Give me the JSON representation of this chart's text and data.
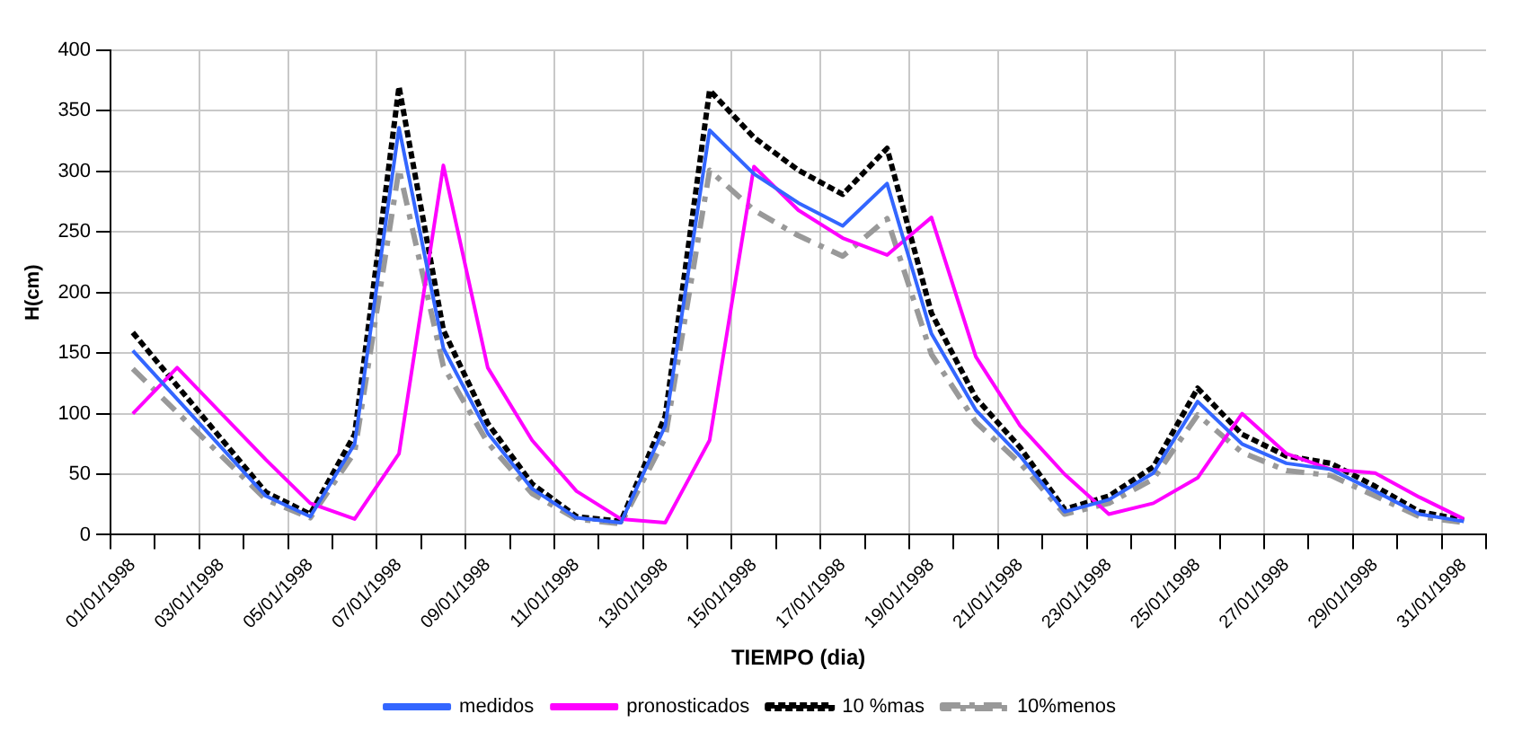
{
  "chart_data": {
    "type": "line",
    "xlabel": "TIEMPO (dia)",
    "ylabel": "H(cm)",
    "categories": [
      "01/01/1998",
      null,
      "03/01/1998",
      null,
      "05/01/1998",
      null,
      "07/01/1998",
      null,
      "09/01/1998",
      null,
      "11/01/1998",
      null,
      "13/01/1998",
      null,
      "15/01/1998",
      null,
      "17/01/1998",
      null,
      "19/01/1998",
      null,
      "21/01/1998",
      null,
      "23/01/1998",
      null,
      "25/01/1998",
      null,
      "27/01/1998",
      null,
      "29/01/1998",
      null,
      "31/01/1998"
    ],
    "series": [
      {
        "name": "medidos",
        "color": "#3366ff",
        "line_style": "solid",
        "values": [
          152,
          112,
          72,
          32,
          15,
          75,
          336,
          154,
          84,
          38,
          14,
          10,
          90,
          334,
          298,
          274,
          255,
          290,
          166,
          103,
          65,
          19,
          29,
          51,
          110,
          75,
          59,
          54,
          36,
          17,
          11
        ]
      },
      {
        "name": "pronosticados",
        "color": "#ff00ff",
        "line_style": "solid",
        "values": [
          100,
          138,
          100,
          62,
          26,
          13,
          67,
          305,
          138,
          78,
          36,
          13,
          10,
          78,
          304,
          268,
          245,
          231,
          262,
          147,
          90,
          50,
          17,
          26,
          47,
          100,
          67,
          54,
          51,
          31,
          13
        ]
      },
      {
        "name": "10 %mas",
        "color": "#000000",
        "line_style": "dotted",
        "values": [
          167,
          123,
          79,
          35,
          17,
          83,
          370,
          169,
          92,
          42,
          15,
          11,
          98,
          367,
          328,
          301,
          281,
          319,
          183,
          113,
          72,
          21,
          32,
          56,
          121,
          83,
          65,
          59,
          40,
          19,
          12
        ]
      },
      {
        "name": "10%menos",
        "color": "#999999",
        "line_style": "dashed",
        "values": [
          137,
          101,
          65,
          29,
          14,
          68,
          302,
          139,
          76,
          34,
          13,
          9,
          80,
          301,
          268,
          247,
          230,
          261,
          149,
          93,
          59,
          17,
          26,
          46,
          99,
          68,
          53,
          49,
          32,
          15,
          10
        ]
      }
    ],
    "ylim": [
      0,
      400
    ],
    "yticks": [
      0,
      50,
      100,
      150,
      200,
      250,
      300,
      350,
      400
    ],
    "grid": true,
    "legend": "bottom",
    "marker": "none"
  }
}
